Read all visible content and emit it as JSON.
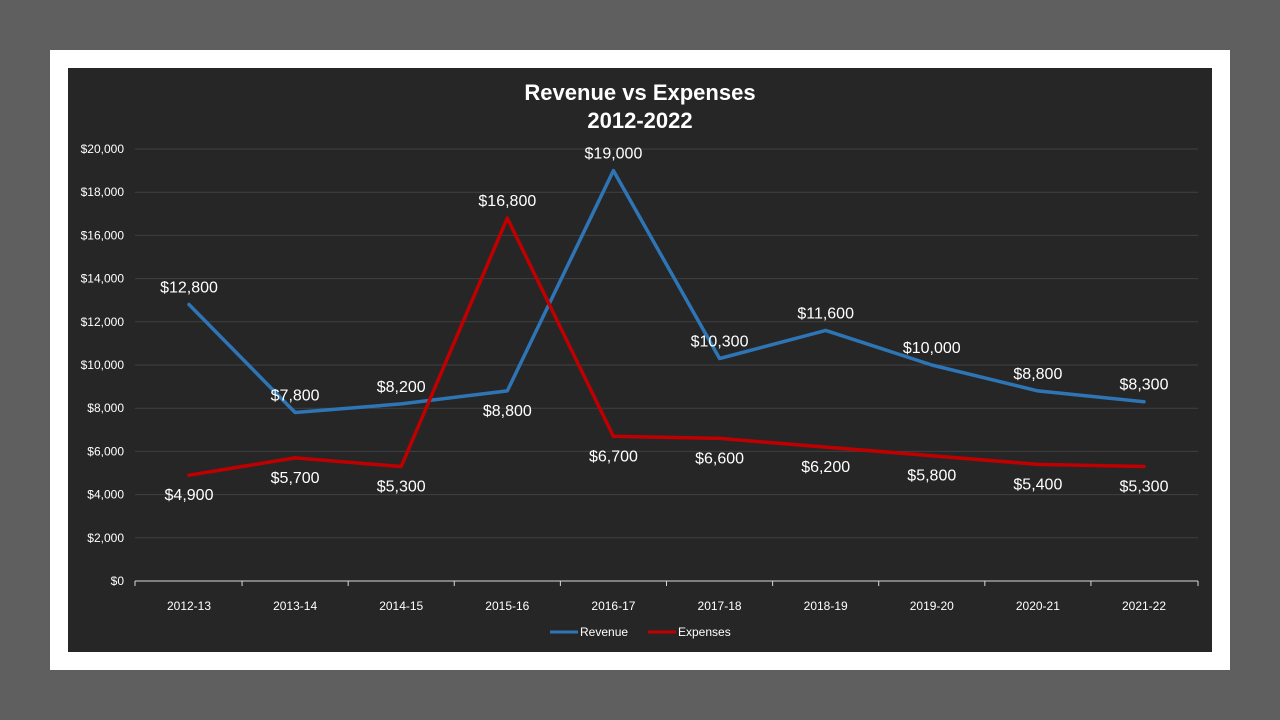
{
  "chart_data": {
    "type": "line",
    "title_line1": "Revenue vs Expenses",
    "title_line2": "2012-2022",
    "categories": [
      "2012-13",
      "2013-14",
      "2014-15",
      "2015-16",
      "2016-17",
      "2017-18",
      "2018-19",
      "2019-20",
      "2020-21",
      "2021-22"
    ],
    "y_ticks": [
      "$0",
      "$2,000",
      "$4,000",
      "$6,000",
      "$8,000",
      "$10,000",
      "$12,000",
      "$14,000",
      "$16,000",
      "$18,000",
      "$20,000"
    ],
    "ylim": [
      0,
      20000
    ],
    "grid": true,
    "legend_position": "bottom",
    "series": [
      {
        "name": "Revenue",
        "color": "#2e75b6",
        "values": [
          12800,
          7800,
          8200,
          8800,
          19000,
          10300,
          11600,
          10000,
          8800,
          8300
        ],
        "labels": [
          "$12,800",
          "$7,800",
          "$8,200",
          "$8,800",
          "$19,000",
          "$10,300",
          "$11,600",
          "$10,000",
          "$8,800",
          "$8,300"
        ]
      },
      {
        "name": "Expenses",
        "color": "#c00000",
        "values": [
          4900,
          5700,
          5300,
          16800,
          6700,
          6600,
          6200,
          5800,
          5400,
          5300
        ],
        "labels": [
          "$4,900",
          "$5,700",
          "$5,300",
          "$16,800",
          "$6,700",
          "$6,600",
          "$6,200",
          "$5,800",
          "$5,400",
          "$5,300"
        ]
      }
    ]
  }
}
